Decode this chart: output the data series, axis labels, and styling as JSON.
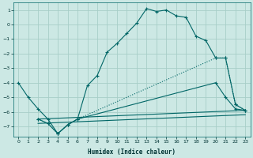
{
  "xlabel": "Humidex (Indice chaleur)",
  "bg_color": "#cce8e4",
  "grid_color": "#a8cec8",
  "line_color": "#006666",
  "xlim": [
    -0.5,
    23.5
  ],
  "ylim": [
    -7.7,
    1.5
  ],
  "xticks": [
    0,
    1,
    2,
    3,
    4,
    5,
    6,
    7,
    8,
    9,
    10,
    11,
    12,
    13,
    14,
    15,
    16,
    17,
    18,
    19,
    20,
    21,
    22,
    23
  ],
  "yticks": [
    -7,
    -6,
    -5,
    -4,
    -3,
    -2,
    -1,
    0,
    1
  ],
  "line1_x": [
    0,
    1,
    2,
    3,
    4,
    5,
    6,
    7,
    8,
    9,
    10,
    11,
    12,
    13,
    14,
    15,
    16,
    17,
    18,
    19,
    20,
    21,
    22,
    23
  ],
  "line1_y": [
    -4.0,
    -5.0,
    -5.8,
    -6.5,
    -7.5,
    -6.9,
    -6.5,
    -4.2,
    -3.5,
    -1.9,
    -1.3,
    -0.6,
    0.1,
    1.1,
    0.9,
    1.0,
    0.6,
    0.5,
    -0.8,
    -1.1,
    -2.3,
    -2.3,
    -5.5,
    -5.9
  ],
  "line2_x": [
    2,
    3,
    4,
    5,
    6,
    20,
    21,
    22,
    23
  ],
  "line2_y": [
    -6.5,
    -6.8,
    -7.5,
    -6.9,
    -6.5,
    -2.3,
    -2.3,
    -5.5,
    -5.9
  ],
  "line3_x": [
    2,
    3,
    4,
    5,
    6,
    20,
    21,
    22,
    23
  ],
  "line3_y": [
    -6.5,
    -6.8,
    -7.5,
    -6.9,
    -6.5,
    -4.0,
    -5.0,
    -5.8,
    -5.9
  ],
  "line4_x": [
    2,
    23
  ],
  "line4_y": [
    -6.5,
    -5.9
  ],
  "line5_x": [
    2,
    23
  ],
  "line5_y": [
    -6.8,
    -6.2
  ]
}
